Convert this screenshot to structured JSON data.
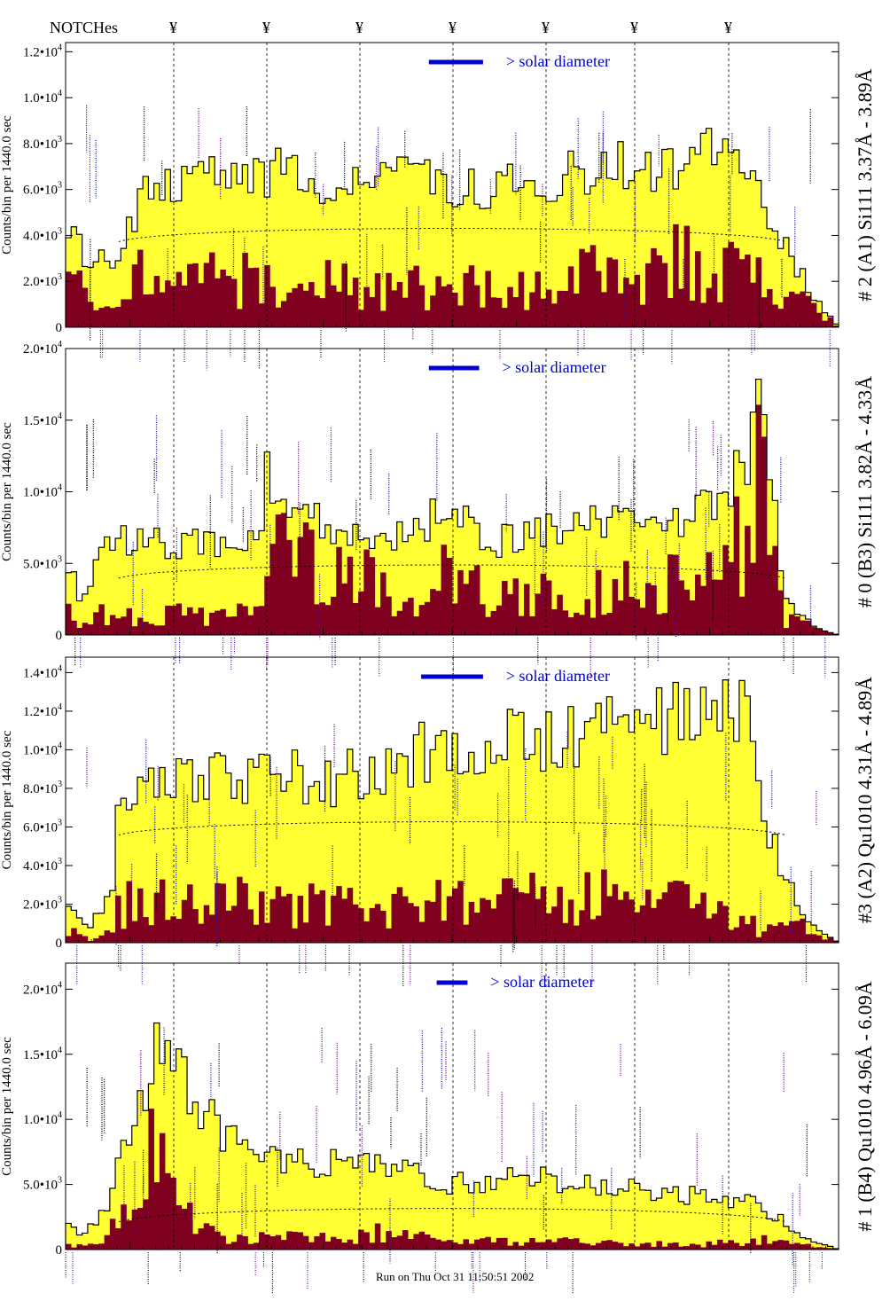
{
  "header": {
    "notch_label": "NOTCHes",
    "notch_symbol": "¥"
  },
  "footer": {
    "run_text": "Run on Thu Oct 31 11:50:51 2002"
  },
  "colors": {
    "total_fill": "#ffff33",
    "component_fill": "#800020",
    "line": "#000000",
    "solar_bar": "#0000cc",
    "line_id_dark": "#000000",
    "line_id_blue": "#1a1aaa",
    "line_id_purple": "#660088"
  },
  "chart_data": [
    {
      "type": "histogram",
      "title": "# 2 (A1) Si111  3.37Å - 3.89Å",
      "ylabel": "Counts/bin per   1440.0 sec",
      "ylim": [
        0,
        12400
      ],
      "yticks": [
        {
          "value": 0,
          "base": "0",
          "exp": ""
        },
        {
          "value": 2000,
          "base": "2.0•10",
          "exp": "3"
        },
        {
          "value": 4000,
          "base": "4.0•10",
          "exp": "3"
        },
        {
          "value": 6000,
          "base": "6.0•10",
          "exp": "3"
        },
        {
          "value": 8000,
          "base": "8.0•10",
          "exp": "3"
        },
        {
          "value": 10000,
          "base": "1.0•10",
          "exp": "4"
        },
        {
          "value": 12000,
          "base": "1.2•10",
          "exp": "4"
        }
      ],
      "solar_diameter_label": "> solar diameter",
      "solar_bar_x": [
        0.47,
        0.54
      ],
      "smooth_level": 4500,
      "total_profile": [
        [
          0,
          5000
        ],
        [
          0.03,
          2800
        ],
        [
          0.07,
          3000
        ],
        [
          0.09,
          4800
        ],
        [
          0.12,
          6500
        ],
        [
          0.2,
          6800
        ],
        [
          0.3,
          6600
        ],
        [
          0.4,
          6400
        ],
        [
          0.5,
          6100
        ],
        [
          0.6,
          6400
        ],
        [
          0.7,
          6800
        ],
        [
          0.8,
          7300
        ],
        [
          0.88,
          7700
        ],
        [
          0.92,
          4000
        ],
        [
          0.95,
          2500
        ],
        [
          0.97,
          1200
        ],
        [
          1,
          0
        ]
      ],
      "component_profile": [
        [
          0,
          2500
        ],
        [
          0.03,
          900
        ],
        [
          0.07,
          600
        ],
        [
          0.1,
          2400
        ],
        [
          0.2,
          2100
        ],
        [
          0.3,
          1800
        ],
        [
          0.4,
          1800
        ],
        [
          0.5,
          1700
        ],
        [
          0.6,
          2000
        ],
        [
          0.7,
          2300
        ],
        [
          0.8,
          2800
        ],
        [
          0.88,
          2900
        ],
        [
          0.92,
          800
        ],
        [
          0.96,
          1600
        ],
        [
          1,
          0
        ]
      ]
    },
    {
      "type": "histogram",
      "title": "# 0 (B3) Si111  3.82Å - 4.33Å",
      "ylabel": "Counts/bin per   1440.0 sec",
      "ylim": [
        0,
        20000
      ],
      "yticks": [
        {
          "value": 0,
          "base": "0",
          "exp": ""
        },
        {
          "value": 5000,
          "base": "5.0•10",
          "exp": "3"
        },
        {
          "value": 10000,
          "base": "1.0•10",
          "exp": "4"
        },
        {
          "value": 15000,
          "base": "1.5•10",
          "exp": "4"
        },
        {
          "value": 20000,
          "base": "2.0•10",
          "exp": "4"
        }
      ],
      "solar_diameter_label": "> solar diameter",
      "solar_bar_x": [
        0.47,
        0.535
      ],
      "smooth_level": 5200,
      "total_profile": [
        [
          0,
          6000
        ],
        [
          0.02,
          2000
        ],
        [
          0.05,
          6500
        ],
        [
          0.15,
          6500
        ],
        [
          0.25,
          6200
        ],
        [
          0.26,
          11000
        ],
        [
          0.3,
          9000
        ],
        [
          0.35,
          7500
        ],
        [
          0.45,
          7000
        ],
        [
          0.5,
          9500
        ],
        [
          0.55,
          6500
        ],
        [
          0.65,
          7500
        ],
        [
          0.7,
          7800
        ],
        [
          0.8,
          7500
        ],
        [
          0.88,
          12000
        ],
        [
          0.9,
          18000
        ],
        [
          0.93,
          2500
        ],
        [
          0.97,
          500
        ],
        [
          1,
          0
        ]
      ],
      "component_profile": [
        [
          0,
          3500
        ],
        [
          0.02,
          500
        ],
        [
          0.05,
          1500
        ],
        [
          0.15,
          1500
        ],
        [
          0.25,
          1300
        ],
        [
          0.27,
          7000
        ],
        [
          0.32,
          5500
        ],
        [
          0.38,
          4500
        ],
        [
          0.45,
          2000
        ],
        [
          0.5,
          5000
        ],
        [
          0.55,
          2200
        ],
        [
          0.65,
          3000
        ],
        [
          0.75,
          3200
        ],
        [
          0.82,
          4000
        ],
        [
          0.88,
          7000
        ],
        [
          0.9,
          12500
        ],
        [
          0.93,
          1000
        ],
        [
          0.97,
          1800
        ],
        [
          1,
          0
        ]
      ]
    },
    {
      "type": "histogram",
      "title": "#3 (A2) Qu1010  4.31Å - 4.89Å",
      "ylabel": "Counts/bin per   1440.0 sec",
      "ylim": [
        0,
        14800
      ],
      "yticks": [
        {
          "value": 0,
          "base": "0",
          "exp": ""
        },
        {
          "value": 2000,
          "base": "2.0•10",
          "exp": "3"
        },
        {
          "value": 4000,
          "base": "4.0•10",
          "exp": "3"
        },
        {
          "value": 6000,
          "base": "6.0•10",
          "exp": "3"
        },
        {
          "value": 8000,
          "base": "8.0•10",
          "exp": "3"
        },
        {
          "value": 10000,
          "base": "1.0•10",
          "exp": "4"
        },
        {
          "value": 12000,
          "base": "1.2•10",
          "exp": "4"
        },
        {
          "value": 14000,
          "base": "1.4•10",
          "exp": "4"
        }
      ],
      "solar_diameter_label": "> solar diameter",
      "solar_bar_x": [
        0.46,
        0.54
      ],
      "smooth_level": 6500,
      "total_profile": [
        [
          0,
          2500
        ],
        [
          0.03,
          800
        ],
        [
          0.06,
          2500
        ],
        [
          0.07,
          7500
        ],
        [
          0.15,
          8200
        ],
        [
          0.25,
          8700
        ],
        [
          0.35,
          8500
        ],
        [
          0.45,
          9500
        ],
        [
          0.5,
          10500
        ],
        [
          0.6,
          10500
        ],
        [
          0.7,
          11000
        ],
        [
          0.8,
          11800
        ],
        [
          0.88,
          11500
        ],
        [
          0.9,
          7000
        ],
        [
          0.93,
          3500
        ],
        [
          0.96,
          1000
        ],
        [
          1,
          0
        ]
      ],
      "component_profile": [
        [
          0,
          900
        ],
        [
          0.03,
          200
        ],
        [
          0.06,
          800
        ],
        [
          0.07,
          2000
        ],
        [
          0.15,
          2200
        ],
        [
          0.25,
          2200
        ],
        [
          0.35,
          1800
        ],
        [
          0.45,
          2000
        ],
        [
          0.55,
          2200
        ],
        [
          0.65,
          2500
        ],
        [
          0.75,
          2400
        ],
        [
          0.85,
          2000
        ],
        [
          0.9,
          600
        ],
        [
          0.94,
          1000
        ],
        [
          1,
          0
        ]
      ]
    },
    {
      "type": "histogram",
      "title": "# 1 (B4) Qu1010 4.96Å - 6.09Å",
      "ylabel": "Counts/bin per   1440.0 sec",
      "ylim": [
        0,
        22000
      ],
      "yticks": [
        {
          "value": 0,
          "base": "0",
          "exp": ""
        },
        {
          "value": 5000,
          "base": "5.0•10",
          "exp": "3"
        },
        {
          "value": 10000,
          "base": "1.0•10",
          "exp": "4"
        },
        {
          "value": 15000,
          "base": "1.5•10",
          "exp": "4"
        },
        {
          "value": 20000,
          "base": "2.0•10",
          "exp": "4"
        }
      ],
      "solar_diameter_label": "> solar diameter",
      "solar_bar_x": [
        0.48,
        0.52
      ],
      "smooth_level": 3500,
      "total_profile": [
        [
          0,
          2800
        ],
        [
          0.02,
          800
        ],
        [
          0.05,
          3000
        ],
        [
          0.08,
          8000
        ],
        [
          0.12,
          16000
        ],
        [
          0.15,
          13000
        ],
        [
          0.2,
          9000
        ],
        [
          0.25,
          7000
        ],
        [
          0.35,
          6500
        ],
        [
          0.45,
          6000
        ],
        [
          0.5,
          5000
        ],
        [
          0.6,
          5500
        ],
        [
          0.7,
          4800
        ],
        [
          0.8,
          4200
        ],
        [
          0.88,
          3800
        ],
        [
          0.92,
          2500
        ],
        [
          0.96,
          800
        ],
        [
          1,
          0
        ]
      ],
      "component_profile": [
        [
          0,
          300
        ],
        [
          0.05,
          400
        ],
        [
          0.08,
          3500
        ],
        [
          0.12,
          7500
        ],
        [
          0.15,
          3000
        ],
        [
          0.2,
          700
        ],
        [
          0.3,
          1000
        ],
        [
          0.4,
          1300
        ],
        [
          0.5,
          600
        ],
        [
          0.6,
          700
        ],
        [
          0.7,
          500
        ],
        [
          0.8,
          400
        ],
        [
          0.9,
          700
        ],
        [
          1,
          0
        ]
      ]
    }
  ]
}
